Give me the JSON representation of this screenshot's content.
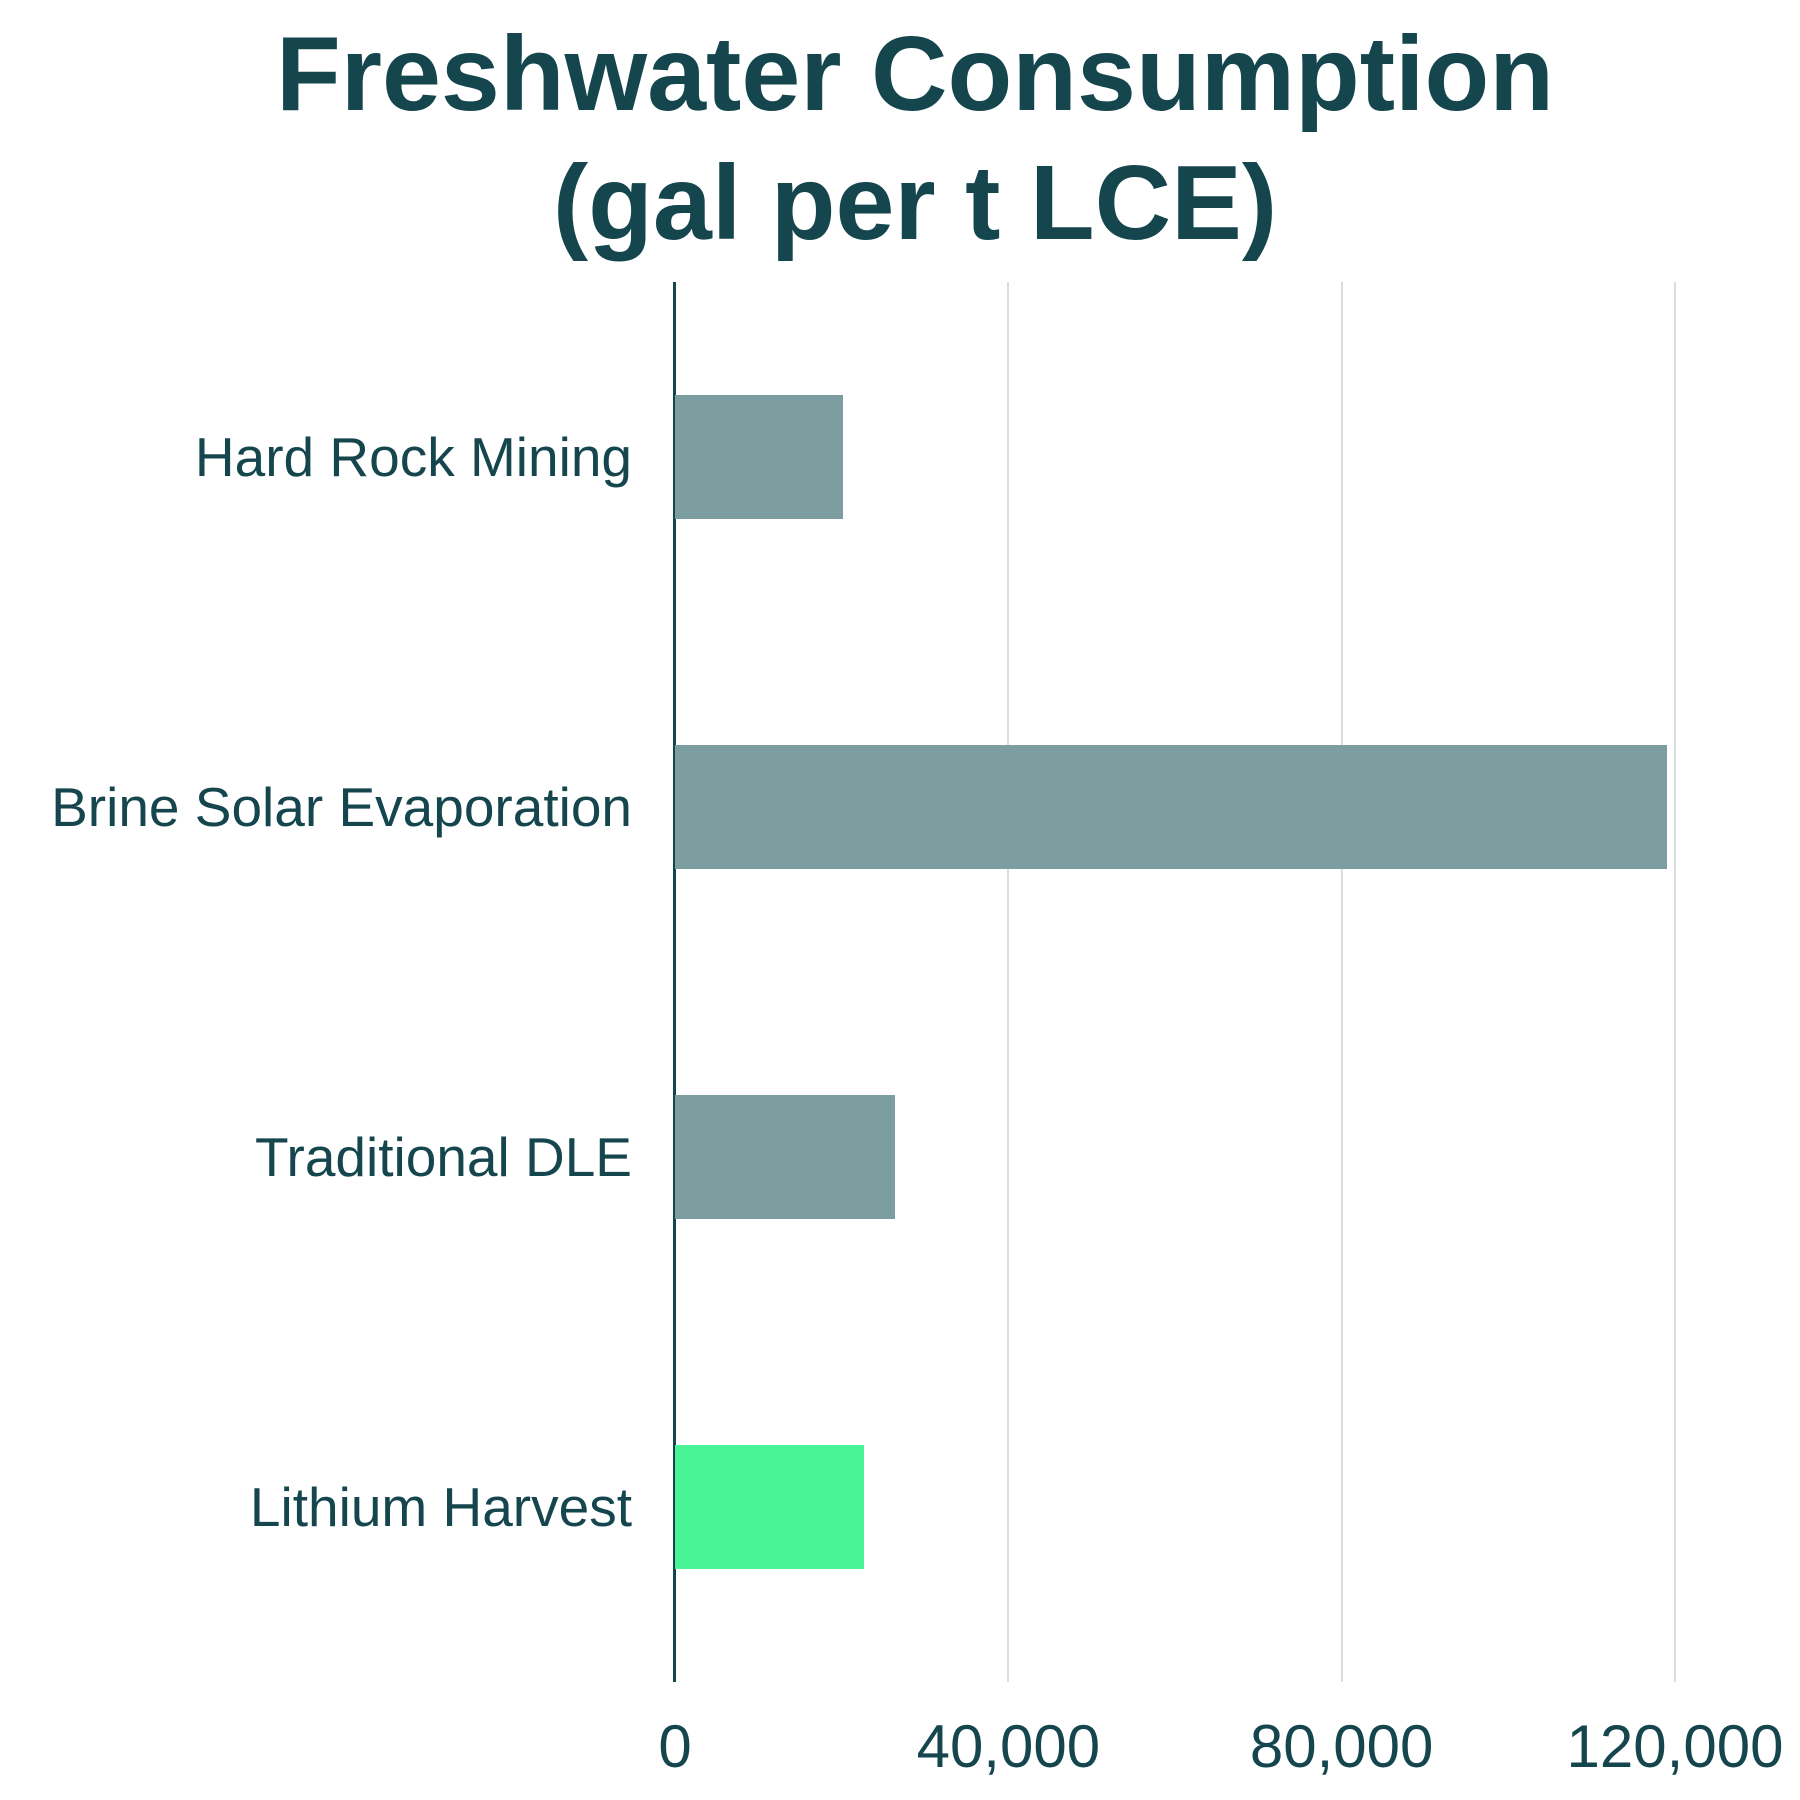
{
  "title": {
    "line1": "Freshwater Consumption",
    "line2": "(gal per t LCE)"
  },
  "chart_data": {
    "type": "bar",
    "orientation": "horizontal",
    "title": "Freshwater Consumption (gal per t LCE)",
    "xlabel": "",
    "ylabel": "",
    "categories": [
      "Hard Rock Mining",
      "Brine Solar Evaporation",
      "Traditional DLE",
      "Lithium Harvest"
    ],
    "values": [
      20200,
      119000,
      26400,
      22700
    ],
    "bar_colors": [
      "#7D9EA0",
      "#7D9EA0",
      "#7D9EA0",
      "#49F497"
    ],
    "xlim": [
      0,
      133800
    ],
    "x_ticks": [
      0,
      40000,
      80000,
      120000
    ],
    "x_tick_labels": [
      "0",
      "40,000",
      "80,000",
      "120,000"
    ],
    "grid": "vertical lines at x ticks",
    "legend": "none"
  },
  "colors": {
    "background": "#FFFFFF",
    "title_text": "#15464E",
    "label_text": "#15464E",
    "axis_line": "#15464E",
    "gridline": "#D8DEDE",
    "bar_default": "#7D9EA0",
    "bar_accent": "#49F497"
  }
}
